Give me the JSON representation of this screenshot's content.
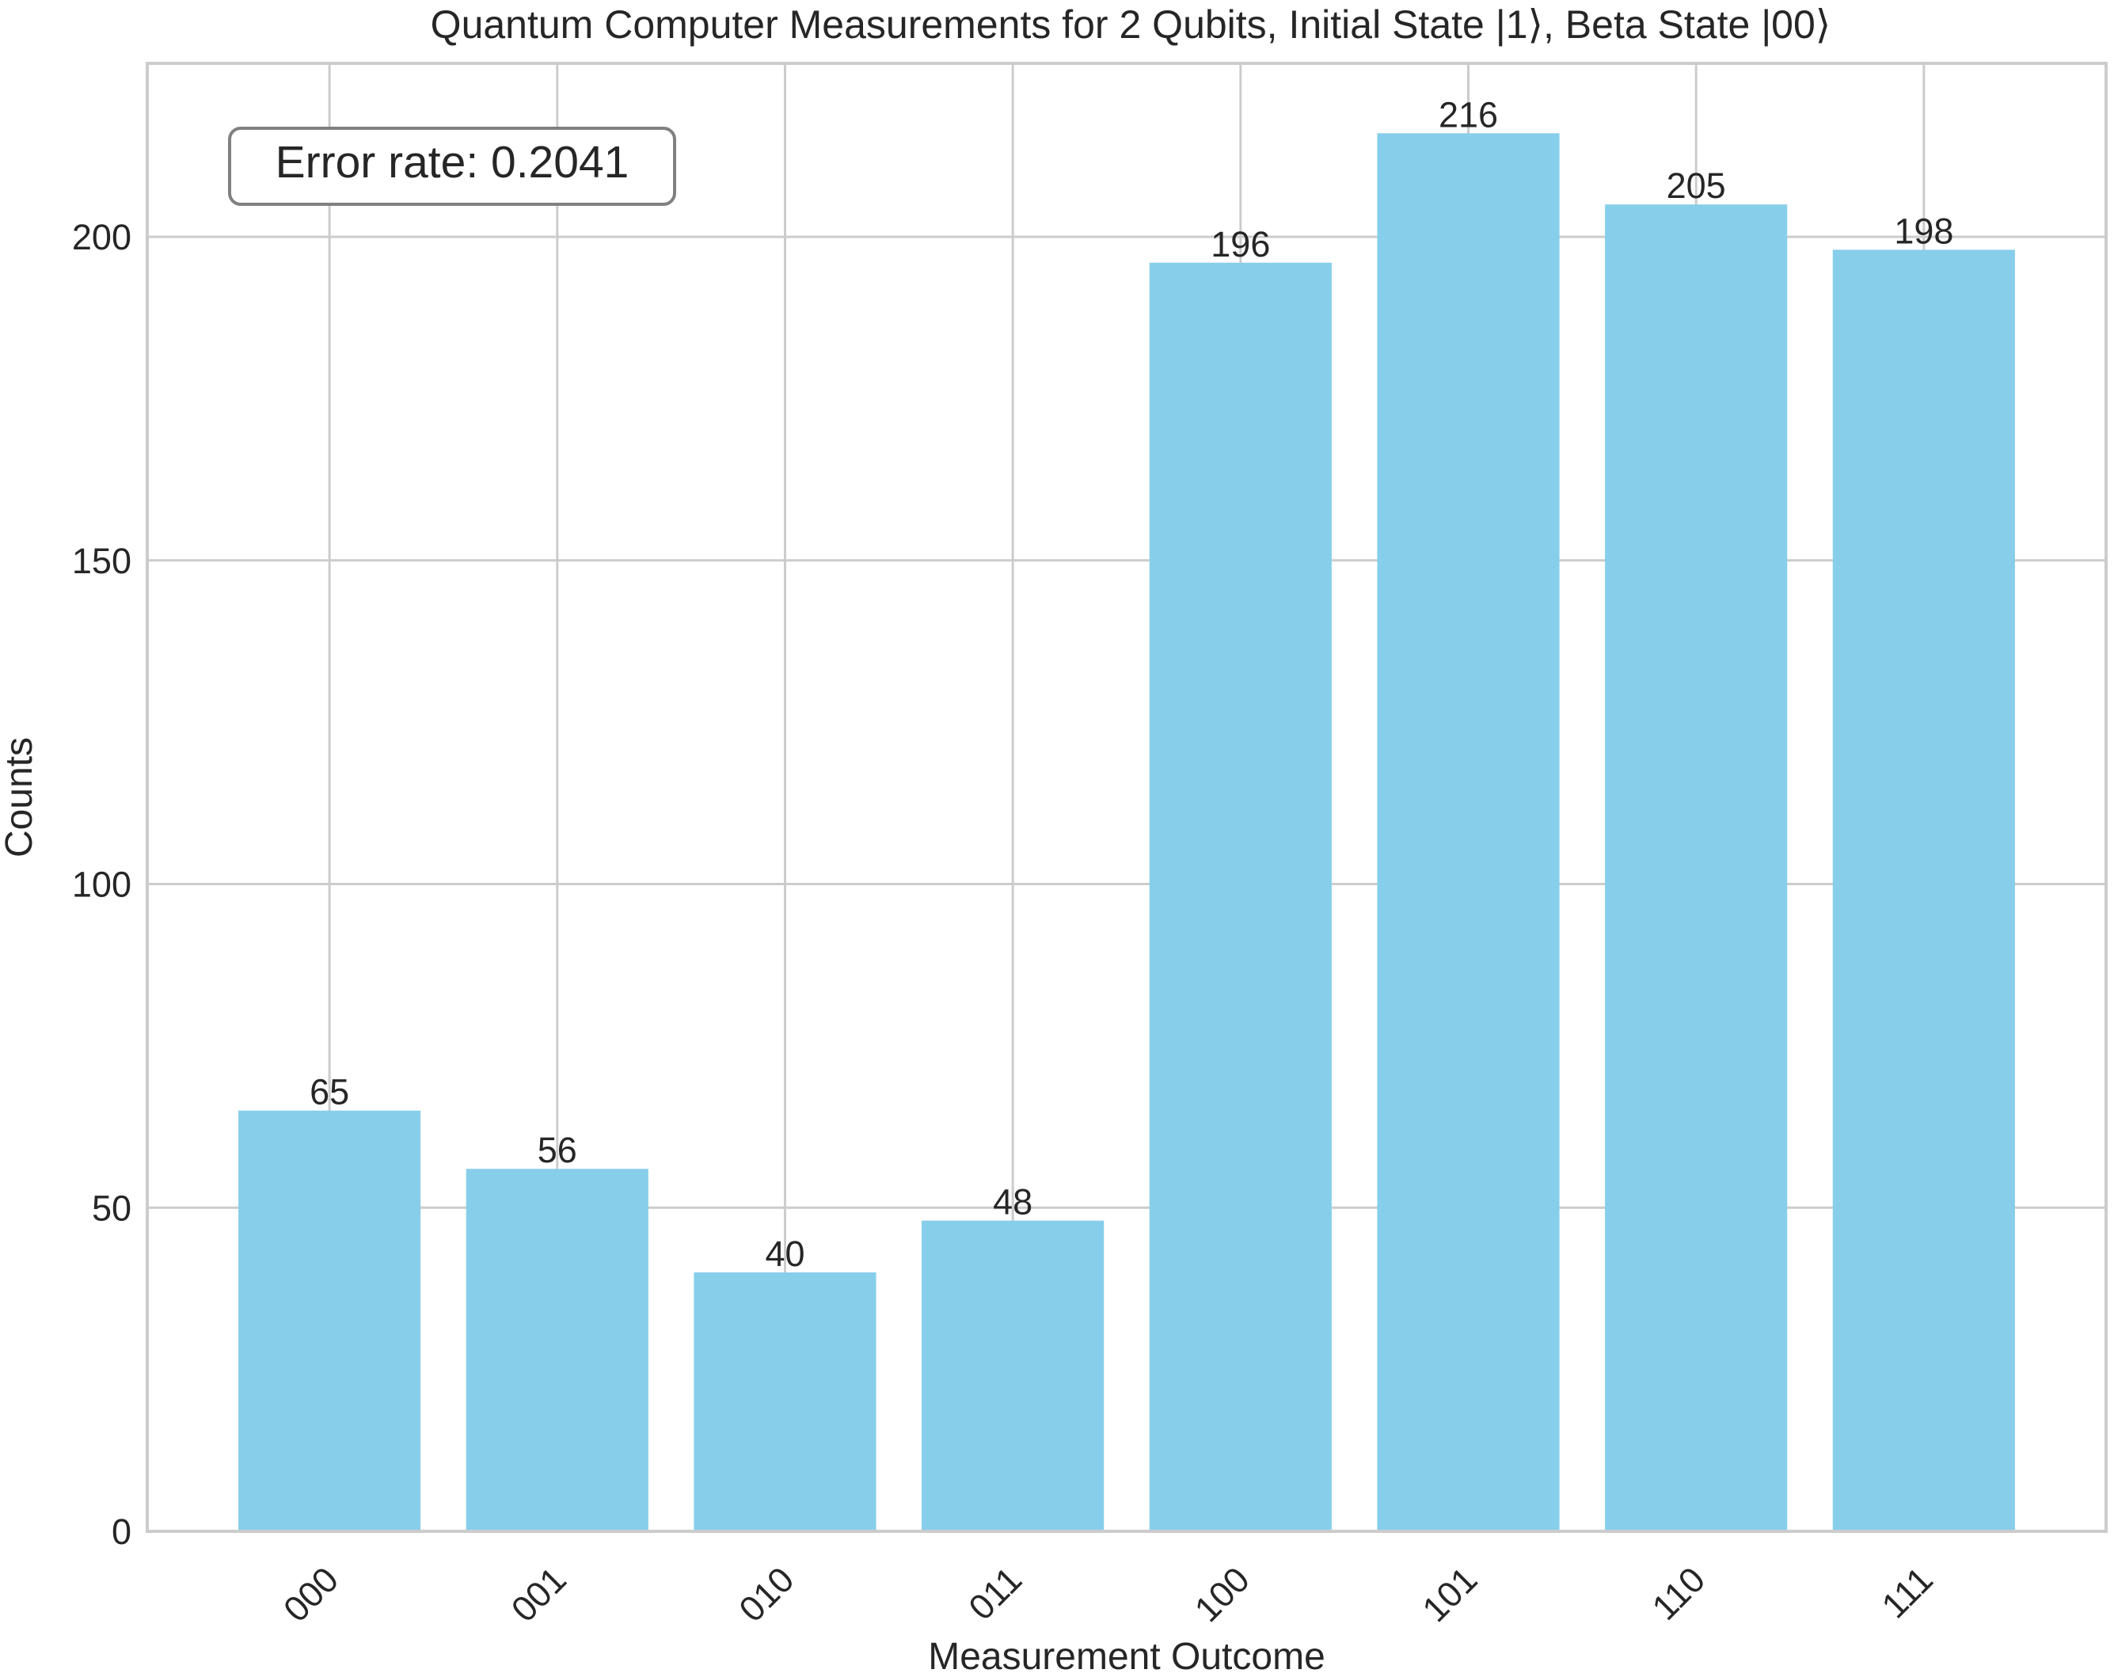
{
  "colors": {
    "bar": "#87ceeb",
    "grid": "#cccccc",
    "text": "#262626",
    "annotation_border": "#808080"
  },
  "chart_data": {
    "type": "bar",
    "title": "Quantum Computer Measurements for 2 Qubits, Initial State |1⟩, Beta State |00⟩",
    "xlabel": "Measurement Outcome",
    "ylabel": "Counts",
    "categories": [
      "000",
      "001",
      "010",
      "011",
      "100",
      "101",
      "110",
      "111"
    ],
    "values": [
      65,
      56,
      40,
      48,
      196,
      216,
      205,
      198
    ],
    "ylim": [
      0,
      226.8
    ],
    "yticks": [
      0,
      50,
      100,
      150,
      200
    ],
    "grid": true,
    "annotation": "Error rate: 0.2041"
  }
}
